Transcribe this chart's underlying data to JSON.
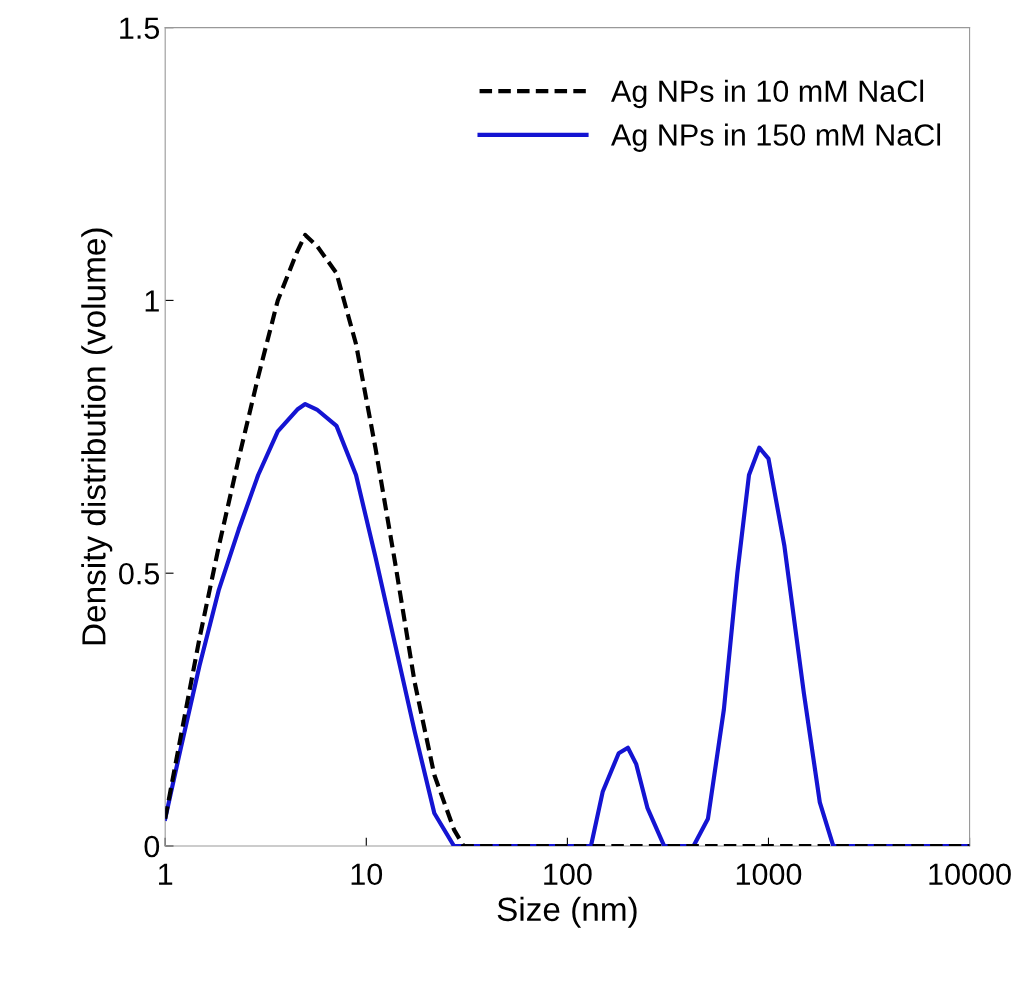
{
  "chart_data": {
    "type": "line",
    "xlabel": "Size (nm)",
    "ylabel": "Density distribution (volume)",
    "log": "x",
    "xlim": [
      1,
      10000
    ],
    "xticks": [
      1,
      10,
      100,
      1000,
      10000
    ],
    "ylim": [
      0,
      1.5
    ],
    "yticks": [
      0,
      0.5,
      1,
      1.5
    ],
    "grid": false,
    "legend": "top right",
    "marker": "none",
    "series": [
      {
        "name": "Ag NPs in 10 mM NaCl",
        "color": "#000000",
        "line_style": "dashed",
        "x": [
          1,
          1.18,
          1.48,
          1.85,
          2.32,
          2.9,
          3.63,
          4.54,
          4.97,
          5.68,
          7.11,
          8.89,
          11.1,
          13.9,
          17.4,
          21.8,
          27.3,
          30.5,
          10000
        ],
        "values": [
          0.05,
          0.19,
          0.38,
          0.55,
          0.71,
          0.86,
          1.0,
          1.09,
          1.12,
          1.1,
          1.05,
          0.92,
          0.73,
          0.52,
          0.3,
          0.13,
          0.03,
          0,
          0
        ]
      },
      {
        "name": "Ag NPs in 150 mM NaCl",
        "color": "#1414d2",
        "line_style": "solid",
        "x": [
          1,
          1.18,
          1.48,
          1.85,
          2.32,
          2.9,
          3.63,
          4.54,
          4.97,
          5.68,
          7.11,
          8.89,
          11.1,
          13.9,
          17.4,
          21.8,
          27.3,
          131,
          150,
          180,
          200,
          220,
          250,
          303,
          424,
          500,
          600,
          700,
          800,
          900,
          1000,
          1200,
          1500,
          1800,
          2100,
          10000
        ],
        "values": [
          0.05,
          0.17,
          0.33,
          0.47,
          0.58,
          0.68,
          0.76,
          0.8,
          0.81,
          0.8,
          0.77,
          0.68,
          0.53,
          0.37,
          0.21,
          0.06,
          0,
          0,
          0.1,
          0.17,
          0.18,
          0.15,
          0.07,
          0,
          0,
          0.05,
          0.25,
          0.5,
          0.68,
          0.73,
          0.71,
          0.55,
          0.28,
          0.08,
          0,
          0
        ]
      }
    ]
  }
}
